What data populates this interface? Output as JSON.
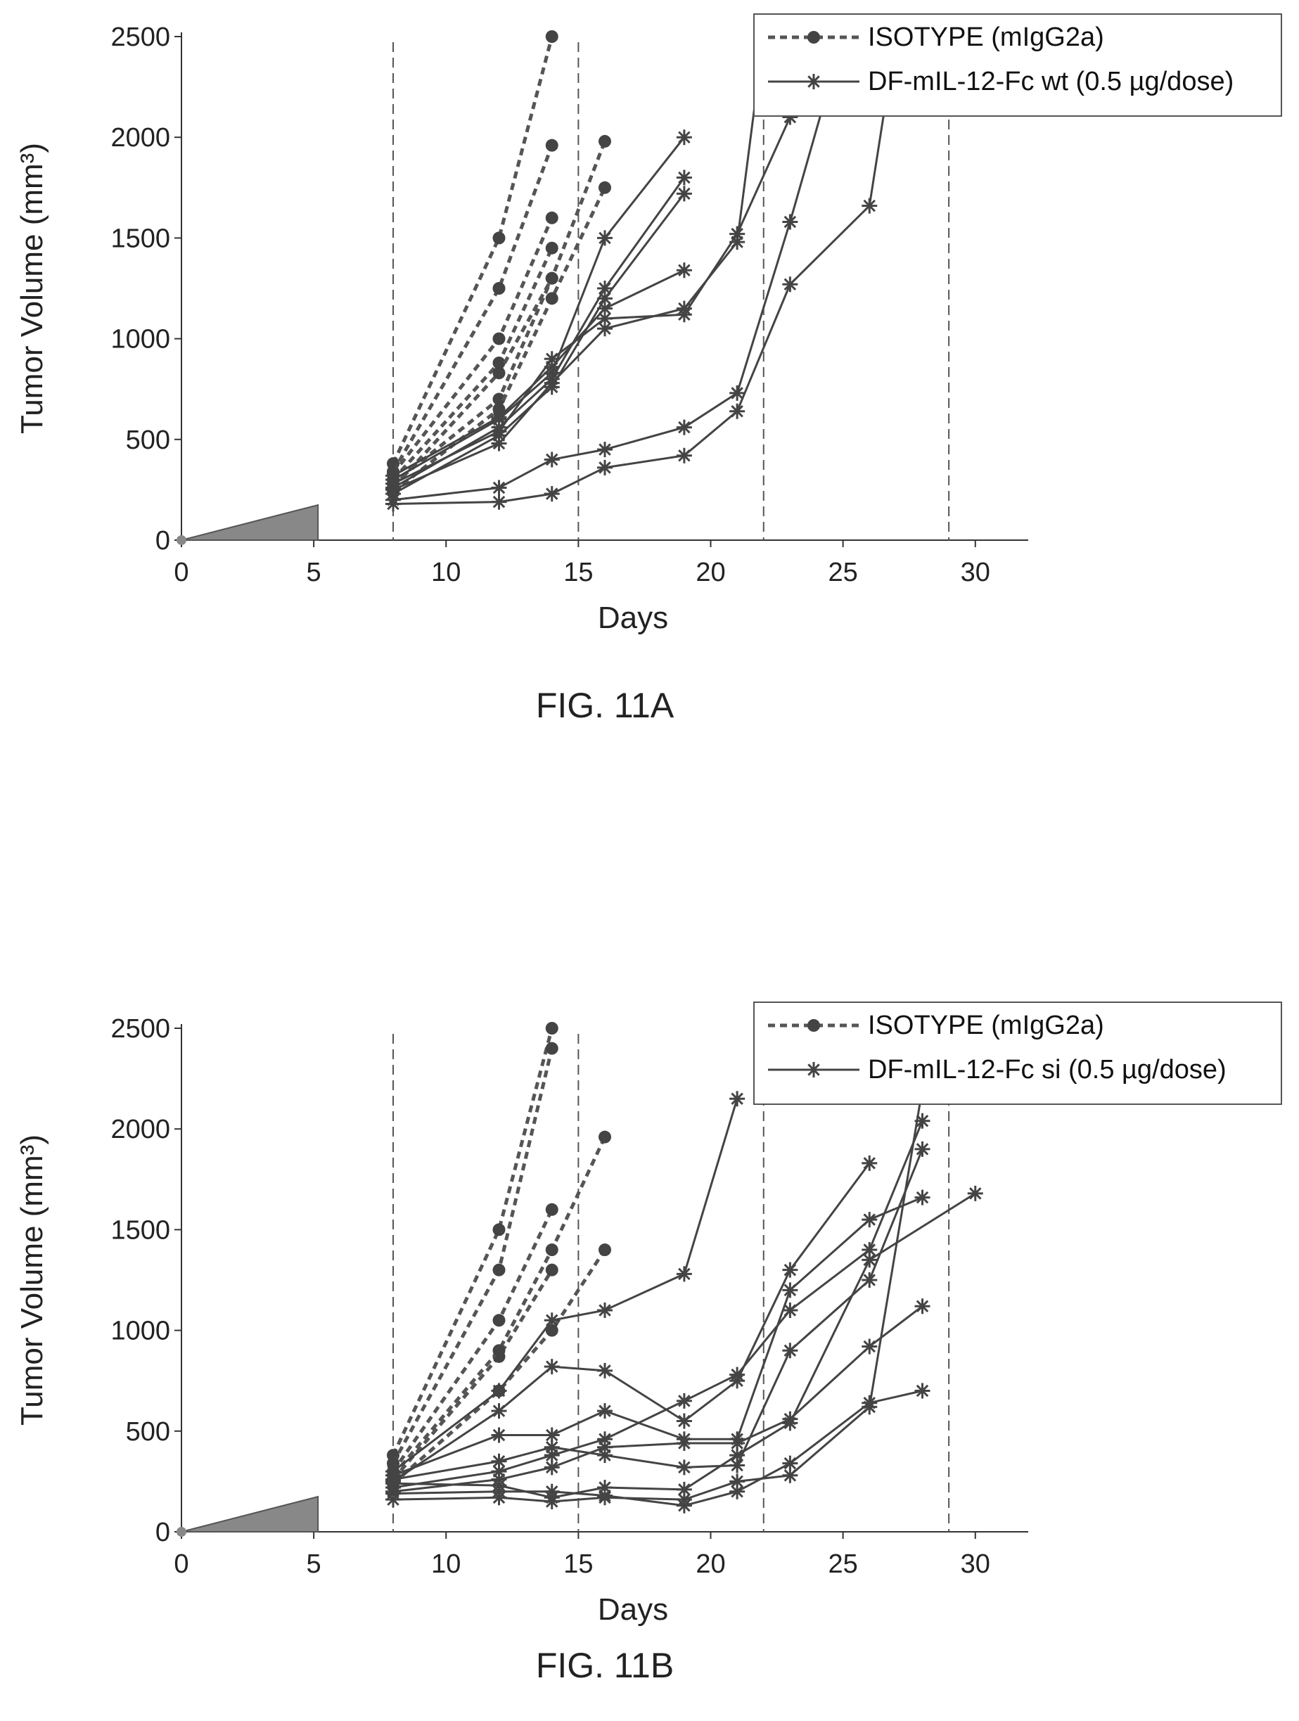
{
  "chart_data": [
    {
      "type": "line",
      "figure_caption": "FIG. 11A",
      "xlabel": "Days",
      "ylabel": "Tumor Volume (mm3)",
      "xlim": [
        0,
        32
      ],
      "ylim": [
        0,
        2500
      ],
      "x_ticks": [
        0,
        5,
        10,
        15,
        20,
        25,
        30
      ],
      "y_ticks": [
        0,
        500,
        1000,
        1500,
        2000,
        2500
      ],
      "dosing_days": [
        8,
        15,
        22,
        29
      ],
      "legend_position": "top-right",
      "legend": [
        "ISOTYPE (mIgG2a)",
        "DF-mIL-12-Fc wt (0.5 µg/dose)"
      ],
      "series": [
        {
          "group": "isotype",
          "x": [
            8,
            12,
            14
          ],
          "y": [
            380,
            1500,
            2500
          ]
        },
        {
          "group": "isotype",
          "x": [
            8,
            12,
            14
          ],
          "y": [
            340,
            1250,
            1960
          ]
        },
        {
          "group": "isotype",
          "x": [
            8,
            12,
            14
          ],
          "y": [
            300,
            880,
            1450
          ]
        },
        {
          "group": "isotype",
          "x": [
            8,
            12,
            14
          ],
          "y": [
            260,
            830,
            1300
          ]
        },
        {
          "group": "isotype",
          "x": [
            8,
            12,
            14
          ],
          "y": [
            330,
            1000,
            1600
          ]
        },
        {
          "group": "isotype",
          "x": [
            8,
            12,
            14,
            16
          ],
          "y": [
            280,
            700,
            1300,
            1980
          ]
        },
        {
          "group": "isotype",
          "x": [
            8,
            12,
            14,
            16
          ],
          "y": [
            240,
            650,
            1200,
            1750
          ]
        },
        {
          "group": "treated",
          "x": [
            8,
            12,
            14,
            16,
            19
          ],
          "y": [
            300,
            600,
            830,
            1500,
            2000
          ]
        },
        {
          "group": "treated",
          "x": [
            8,
            12,
            14,
            16,
            19
          ],
          "y": [
            260,
            560,
            800,
            1250,
            1800
          ]
        },
        {
          "group": "treated",
          "x": [
            8,
            12,
            14,
            16,
            19
          ],
          "y": [
            230,
            520,
            760,
            1200,
            1720
          ]
        },
        {
          "group": "treated",
          "x": [
            8,
            12,
            14,
            16,
            19
          ],
          "y": [
            320,
            610,
            860,
            1150,
            1340
          ]
        },
        {
          "group": "treated",
          "x": [
            8,
            12,
            14,
            16,
            19,
            21,
            23
          ],
          "y": [
            280,
            540,
            900,
            1100,
            1120,
            1520,
            2100
          ]
        },
        {
          "group": "treated",
          "x": [
            8,
            12,
            14,
            16,
            19,
            21,
            22
          ],
          "y": [
            250,
            480,
            780,
            1050,
            1150,
            1480,
            2500
          ]
        },
        {
          "group": "treated",
          "x": [
            8,
            12,
            14,
            16,
            19,
            21,
            23,
            25
          ],
          "y": [
            200,
            260,
            400,
            450,
            560,
            730,
            1580,
            2500
          ]
        },
        {
          "group": "treated",
          "x": [
            8,
            12,
            14,
            16,
            19,
            21,
            23,
            26,
            27
          ],
          "y": [
            180,
            190,
            230,
            360,
            420,
            640,
            1270,
            1660,
            2500
          ]
        }
      ]
    },
    {
      "type": "line",
      "figure_caption": "FIG. 11B",
      "xlabel": "Days",
      "ylabel": "Tumor Volume (mm3)",
      "xlim": [
        0,
        32
      ],
      "ylim": [
        0,
        2500
      ],
      "x_ticks": [
        0,
        5,
        10,
        15,
        20,
        25,
        30
      ],
      "y_ticks": [
        0,
        500,
        1000,
        1500,
        2000,
        2500
      ],
      "dosing_days": [
        8,
        15,
        22,
        29
      ],
      "legend_position": "top-right",
      "legend": [
        "ISOTYPE (mIgG2a)",
        "DF-mIL-12-Fc si (0.5 µg/dose)"
      ],
      "series": [
        {
          "group": "isotype",
          "x": [
            8,
            12,
            14
          ],
          "y": [
            380,
            1500,
            2500
          ]
        },
        {
          "group": "isotype",
          "x": [
            8,
            12,
            14
          ],
          "y": [
            340,
            1300,
            2400
          ]
        },
        {
          "group": "isotype",
          "x": [
            8,
            12,
            14
          ],
          "y": [
            300,
            1050,
            1600
          ]
        },
        {
          "group": "isotype",
          "x": [
            8,
            12,
            14
          ],
          "y": [
            260,
            870,
            1300
          ]
        },
        {
          "group": "isotype",
          "x": [
            8,
            12,
            14,
            16
          ],
          "y": [
            280,
            900,
            1400,
            1960
          ]
        },
        {
          "group": "isotype",
          "x": [
            8,
            12,
            14,
            16
          ],
          "y": [
            240,
            700,
            1000,
            1400
          ]
        },
        {
          "group": "treated",
          "x": [
            8,
            12,
            14,
            16,
            19,
            21
          ],
          "y": [
            300,
            700,
            1050,
            1100,
            1280,
            2150
          ]
        },
        {
          "group": "treated",
          "x": [
            8,
            12,
            14,
            16,
            19,
            21,
            23,
            26
          ],
          "y": [
            250,
            600,
            820,
            800,
            550,
            750,
            1300,
            1830
          ]
        },
        {
          "group": "treated",
          "x": [
            8,
            12,
            14,
            16,
            19,
            21,
            23,
            26,
            28
          ],
          "y": [
            280,
            480,
            480,
            600,
            460,
            460,
            1200,
            1550,
            1660
          ]
        },
        {
          "group": "treated",
          "x": [
            8,
            12,
            14,
            16,
            19,
            21,
            23,
            26,
            28
          ],
          "y": [
            220,
            300,
            380,
            460,
            650,
            780,
            1100,
            1400,
            2040
          ]
        },
        {
          "group": "treated",
          "x": [
            8,
            12,
            14,
            16,
            19,
            21,
            23,
            26,
            28
          ],
          "y": [
            260,
            350,
            420,
            380,
            320,
            330,
            900,
            1250,
            1900
          ]
        },
        {
          "group": "treated",
          "x": [
            8,
            12,
            14,
            16,
            19,
            21,
            23,
            26,
            28
          ],
          "y": [
            200,
            260,
            320,
            420,
            440,
            440,
            560,
            920,
            1120
          ]
        },
        {
          "group": "treated",
          "x": [
            8,
            12,
            14,
            16,
            19,
            21,
            23,
            26,
            30
          ],
          "y": [
            240,
            230,
            170,
            220,
            210,
            380,
            540,
            1350,
            1680
          ]
        },
        {
          "group": "treated",
          "x": [
            8,
            12,
            14,
            16,
            19,
            21,
            23,
            26,
            28
          ],
          "y": [
            190,
            200,
            200,
            180,
            130,
            200,
            340,
            640,
            700
          ]
        },
        {
          "group": "treated",
          "x": [
            8,
            12,
            14,
            16,
            19,
            21,
            23,
            26,
            28
          ],
          "y": [
            160,
            170,
            150,
            170,
            160,
            250,
            280,
            620,
            2200
          ]
        }
      ]
    }
  ]
}
